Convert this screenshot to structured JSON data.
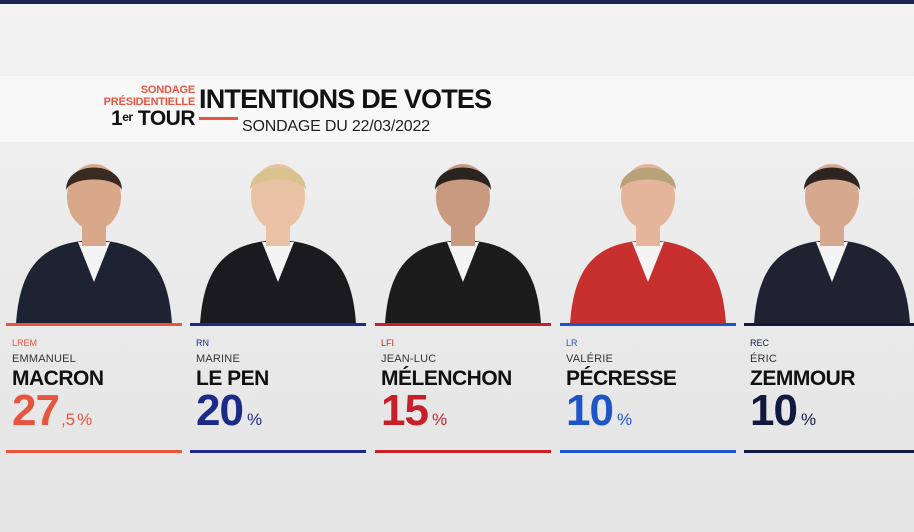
{
  "header": {
    "tag_line1": "SONDAGE",
    "tag_line2": "PRÉSIDENTIELLE",
    "tag_line3": "1",
    "tag_line3_sup": "er",
    "tag_line3_rest": " TOUR",
    "title": "INTENTIONS DE VOTES",
    "subtitle": "SONDAGE DU 22/03/2022"
  },
  "candidates": [
    {
      "party": "LREM",
      "first_name": "EMMANUEL",
      "last_name": "MACRON",
      "score": "27",
      "score_dec": ",5",
      "pct": "%",
      "value": 27.5,
      "color": "#e8553f",
      "shirt": "#1e2333",
      "skin": "#d9a88a",
      "hair": "#3a2b22"
    },
    {
      "party": "RN",
      "first_name": "MARINE",
      "last_name": "LE PEN",
      "score": "20",
      "score_dec": "",
      "pct": "%",
      "value": 20,
      "color": "#1e2a8a",
      "shirt": "#1b1b1f",
      "skin": "#e9c2a6",
      "hair": "#d9c28b"
    },
    {
      "party": "LFI",
      "first_name": "JEAN-LUC",
      "last_name": "MÉLENCHON",
      "score": "15",
      "score_dec": "",
      "pct": "%",
      "value": 15,
      "color": "#c8202a",
      "shirt": "#1c1c1c",
      "skin": "#c99a80",
      "hair": "#2a2420"
    },
    {
      "party": "LR",
      "first_name": "VALÉRIE",
      "last_name": "PÉCRESSE",
      "score": "10",
      "score_dec": "",
      "pct": "%",
      "value": 10,
      "color": "#1d55c8",
      "shirt": "#c7302f",
      "skin": "#e4b59b",
      "hair": "#b8a27a"
    },
    {
      "party": "REC",
      "first_name": "ÉRIC",
      "last_name": "ZEMMOUR",
      "score": "10",
      "score_dec": "",
      "pct": "%",
      "value": 10,
      "color": "#111a3e",
      "shirt": "#1f2230",
      "skin": "#d6a88e",
      "hair": "#2c2522"
    }
  ]
}
